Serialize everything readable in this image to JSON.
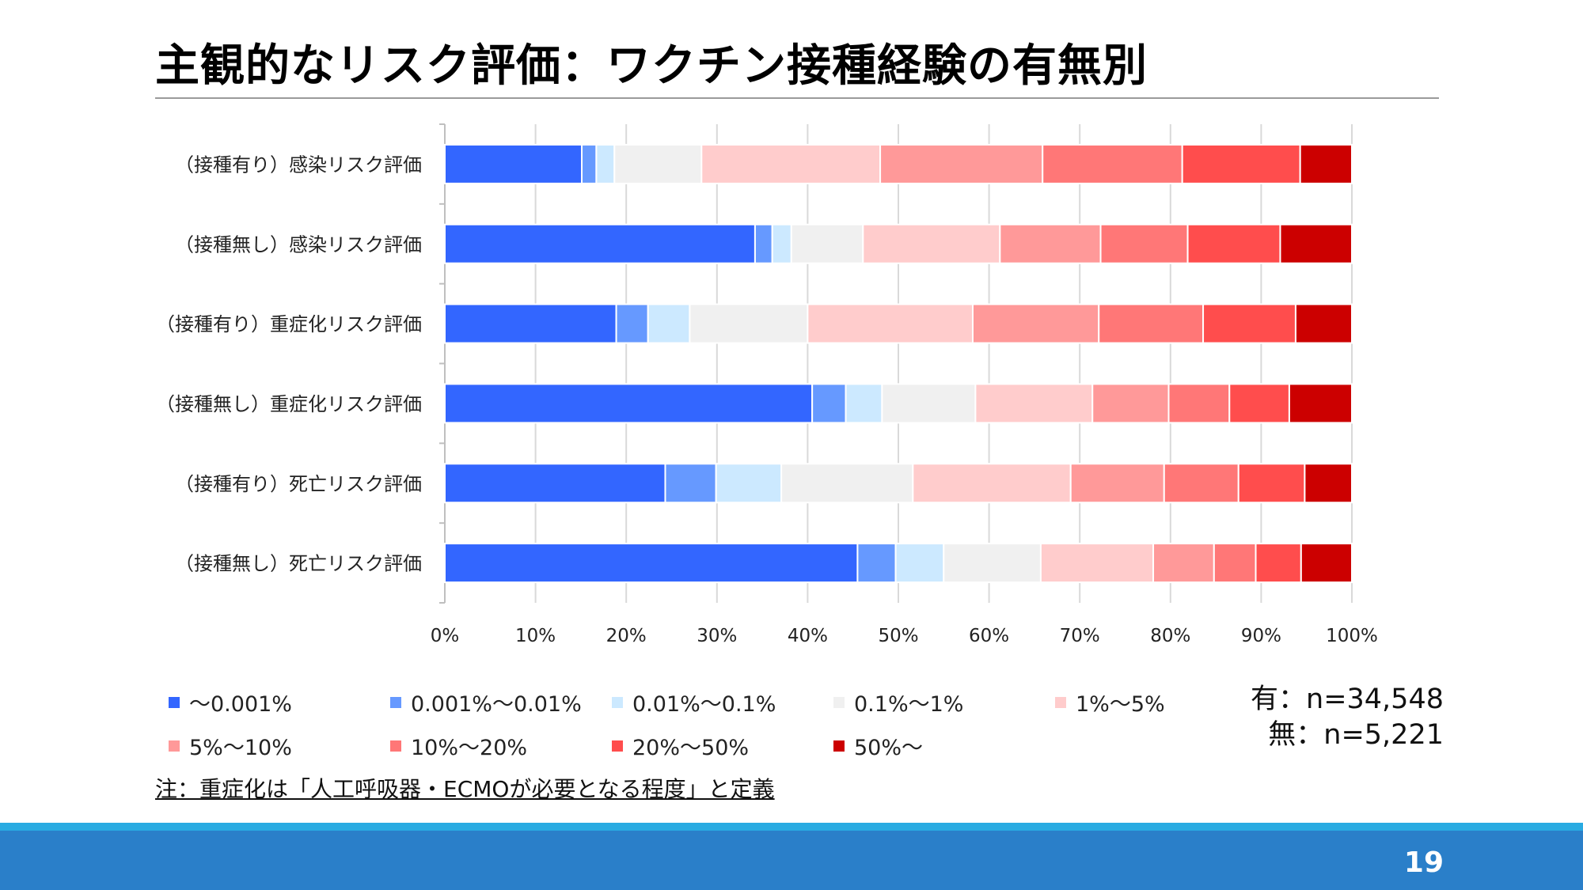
{
  "slide": {
    "title": "主観的なリスク評価：ワクチン接種経験の有無別",
    "footnote": "注：重症化は「人工呼吸器・ECMOが必要となる程度」と定義",
    "sample_yes": "有：n=34,548",
    "sample_no": "無：n=5,221",
    "page_number": "19"
  },
  "chart_data": {
    "type": "bar",
    "orientation": "horizontal",
    "stacked": "100%",
    "categories": [
      "（接種有り）感染リスク評価",
      "（接種無し）感染リスク評価",
      "（接種有り）重症化リスク評価",
      "（接種無し）重症化リスク評価",
      "（接種有り）死亡リスク評価",
      "（接種無し）死亡リスク評価"
    ],
    "xlim": [
      0,
      100
    ],
    "x_ticks": [
      "0%",
      "10%",
      "20%",
      "30%",
      "40%",
      "50%",
      "60%",
      "70%",
      "80%",
      "90%",
      "100%"
    ],
    "grid": true,
    "legend_position": "bottom",
    "series": [
      {
        "name": "～0.001%",
        "color": "#3366ff",
        "values": [
          15.1,
          34.2,
          18.9,
          40.5,
          24.3,
          45.5
        ]
      },
      {
        "name": "0.001%～0.01%",
        "color": "#6699ff",
        "values": [
          1.6,
          1.9,
          3.5,
          3.7,
          5.6,
          4.2
        ]
      },
      {
        "name": "0.01%～0.1%",
        "color": "#cce9ff",
        "values": [
          2.0,
          2.1,
          4.6,
          4.0,
          7.2,
          5.3
        ]
      },
      {
        "name": "0.1%～1%",
        "color": "#f0f0f0",
        "values": [
          9.6,
          7.9,
          13.0,
          10.3,
          14.5,
          10.7
        ]
      },
      {
        "name": "1%～5%",
        "color": "#ffcccc",
        "values": [
          19.7,
          15.1,
          18.2,
          12.9,
          17.4,
          12.4
        ]
      },
      {
        "name": "5%～10%",
        "color": "#ff9999",
        "values": [
          17.9,
          11.1,
          13.9,
          8.4,
          10.3,
          6.7
        ]
      },
      {
        "name": "10%～20%",
        "color": "#ff7777",
        "values": [
          15.4,
          9.6,
          11.5,
          6.7,
          8.2,
          4.6
        ]
      },
      {
        "name": "20%～50%",
        "color": "#ff4d4d",
        "values": [
          13.0,
          10.2,
          10.2,
          6.6,
          7.3,
          5.0
        ]
      },
      {
        "name": "50%～",
        "color": "#cc0000",
        "values": [
          5.7,
          7.9,
          6.2,
          6.9,
          5.2,
          5.6
        ]
      }
    ]
  }
}
